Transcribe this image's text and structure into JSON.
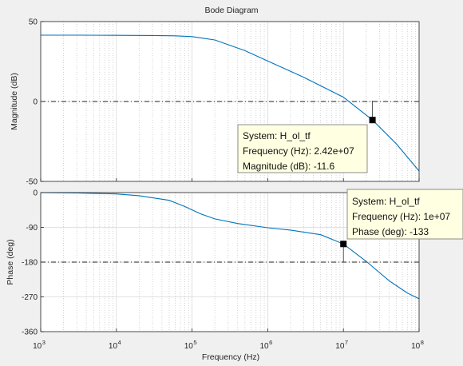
{
  "chart_data": {
    "type": "line",
    "title": "Bode Diagram",
    "xlabel": "Frequency  (Hz)",
    "x_scale": "log",
    "xlim": [
      1000,
      100000000
    ],
    "x_tick_labels": [
      {
        "base": "10",
        "exp": "3"
      },
      {
        "base": "10",
        "exp": "4"
      },
      {
        "base": "10",
        "exp": "5"
      },
      {
        "base": "10",
        "exp": "6"
      },
      {
        "base": "10",
        "exp": "7"
      },
      {
        "base": "10",
        "exp": "8"
      }
    ],
    "grid": true,
    "line_color": "#0072bd",
    "panels": [
      {
        "id": "magnitude",
        "ylabel": "Magnitude (dB)",
        "ylim": [
          -50,
          50
        ],
        "yticks": [
          50,
          0,
          -50
        ],
        "reference_line": 0,
        "series": {
          "x": [
            1000,
            3000,
            10000,
            30000,
            60000,
            100000,
            200000,
            500000,
            1000000,
            3000000,
            10000000,
            24200000,
            50000000,
            100000000
          ],
          "y": [
            41.5,
            41.5,
            41.4,
            41.3,
            41.1,
            40.6,
            38.5,
            31.8,
            25.3,
            15.1,
            2.7,
            -11.6,
            -26.5,
            -43.5
          ]
        },
        "datatip": {
          "x": 24200000,
          "y": -11.6,
          "system": "System: H_ol_tf",
          "freq": "Frequency (Hz): 2.42e+07",
          "value": "Magnitude (dB): -11.6"
        }
      },
      {
        "id": "phase",
        "ylabel": "Phase (deg)",
        "ylim": [
          -360,
          0
        ],
        "yticks": [
          0,
          -90,
          -180,
          -270,
          -360
        ],
        "reference_line": -180,
        "series": {
          "x": [
            1000,
            3000,
            10000,
            20000,
            50000,
            80000,
            130000,
            200000,
            400000,
            1000000,
            2000000,
            5000000,
            10000000,
            20000000,
            40000000,
            70000000,
            100000000
          ],
          "y": [
            0,
            -1,
            -3.5,
            -8,
            -20,
            -36,
            -55,
            -68,
            -80,
            -91,
            -97,
            -109,
            -133,
            -178,
            -228,
            -260,
            -275
          ]
        },
        "datatip": {
          "x": 10000000,
          "y": -133,
          "system": "System: H_ol_tf",
          "freq": "Frequency (Hz): 1e+07",
          "value": "Phase (deg): -133"
        }
      }
    ]
  }
}
